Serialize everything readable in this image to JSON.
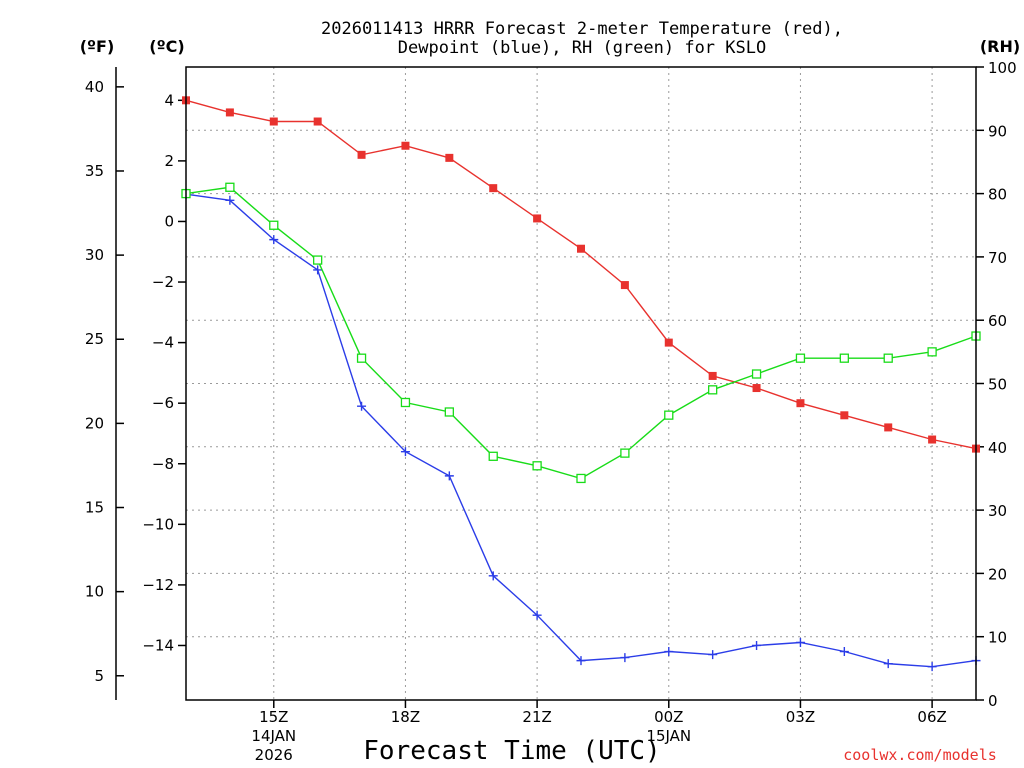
{
  "chart_data": {
    "type": "line",
    "title": [
      "2026011413 HRRR Forecast 2-meter Temperature (red),",
      "Dewpoint (blue), RH (green) for KSLO"
    ],
    "xlabel": "Forecast Time (UTC)",
    "credit": "coolwx.com/models",
    "units": {
      "fahrenheit": "(ºF)",
      "celsius": "(ºC)",
      "rh": "(RH)"
    },
    "hours": [
      13,
      14,
      15,
      16,
      17,
      18,
      19,
      20,
      21,
      22,
      23,
      24,
      25,
      26,
      27,
      28,
      29,
      30,
      31
    ],
    "xlim": [
      13,
      31
    ],
    "x_ticks": [
      {
        "hour": 15,
        "label": "15Z",
        "sub": [
          "14JAN",
          "2026"
        ]
      },
      {
        "hour": 18,
        "label": "18Z",
        "sub": []
      },
      {
        "hour": 21,
        "label": "21Z",
        "sub": []
      },
      {
        "hour": 24,
        "label": "00Z",
        "sub": [
          "15JAN"
        ]
      },
      {
        "hour": 27,
        "label": "03Z",
        "sub": []
      },
      {
        "hour": 30,
        "label": "06Z",
        "sub": []
      }
    ],
    "celsius_axis": {
      "ylim": [
        -15.8,
        5.1
      ],
      "ticks": [
        4,
        2,
        0,
        -2,
        -4,
        -6,
        -8,
        -10,
        -12,
        -14
      ]
    },
    "fahrenheit_axis": {
      "ylim": [
        3.56,
        41.18
      ],
      "ticks": [
        40,
        35,
        30,
        25,
        20,
        15,
        10,
        5
      ]
    },
    "rh_axis": {
      "ylim": [
        0,
        100
      ],
      "ticks": [
        100,
        90,
        80,
        70,
        60,
        50,
        40,
        30,
        20,
        10,
        0
      ]
    },
    "series": [
      {
        "name": "Temperature",
        "axis": "celsius",
        "color": "#e8322e",
        "marker": "filled-square",
        "values": [
          4.0,
          3.6,
          3.3,
          3.3,
          2.2,
          2.5,
          2.1,
          1.1,
          0.1,
          -0.9,
          -2.1,
          -4.0,
          -5.1,
          -5.5,
          -6.0,
          -6.4,
          -6.8,
          -7.2,
          -7.5
        ]
      },
      {
        "name": "Dewpoint",
        "axis": "celsius",
        "color": "#2b3de8",
        "marker": "plus",
        "values": [
          0.9,
          0.7,
          -0.6,
          -1.6,
          -6.1,
          -7.6,
          -8.4,
          -11.7,
          -13.0,
          -14.5,
          -14.4,
          -14.2,
          -14.3,
          -14.0,
          -13.9,
          -14.2,
          -14.6,
          -14.7,
          -14.5
        ]
      },
      {
        "name": "RH",
        "axis": "rh",
        "color": "#18dc18",
        "marker": "open-square",
        "values": [
          80,
          81,
          75,
          69.5,
          54,
          47,
          45.5,
          38.5,
          37,
          35,
          39,
          45,
          49,
          51.5,
          54,
          54,
          54,
          55,
          57.5
        ]
      }
    ]
  }
}
